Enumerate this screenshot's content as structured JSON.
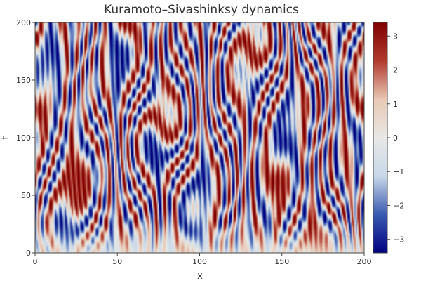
{
  "chart_data": {
    "type": "heatmap",
    "title": "Kuramoto–Sivashinksy dynamics",
    "xlabel": "x",
    "ylabel": "t",
    "xlim": [
      0,
      200
    ],
    "ylim": [
      0,
      200
    ],
    "x_ticks": [
      0,
      50,
      100,
      150,
      200
    ],
    "y_ticks": [
      0,
      50,
      100,
      150,
      200
    ],
    "colorbar": {
      "range": [
        -3.4,
        3.4
      ],
      "ticks": [
        -3,
        -2,
        -1,
        0,
        1,
        2,
        3
      ],
      "tick_labels": [
        "−3",
        "−2",
        "−1",
        "0",
        "1",
        "2",
        "3"
      ],
      "colormap": [
        "#00007f",
        "#3a5ab0",
        "#c8d8e8",
        "#e8e8e6",
        "#e8c8b4",
        "#b03a2e",
        "#7f0000"
      ]
    },
    "grid": false,
    "legend": "colorbar-right"
  }
}
